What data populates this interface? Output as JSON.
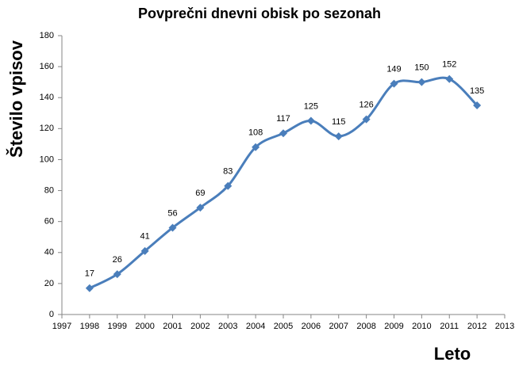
{
  "chart_data": {
    "type": "line",
    "title": "Povprečni dnevni obisk po sezonah",
    "y_label": "Število vpisov",
    "x_label": "Leto",
    "x": [
      1998,
      1999,
      2000,
      2001,
      2002,
      2003,
      2004,
      2005,
      2006,
      2007,
      2008,
      2009,
      2010,
      2011,
      2012
    ],
    "values": [
      17,
      26,
      41,
      56,
      69,
      83,
      108,
      117,
      125,
      115,
      126,
      149,
      150,
      152,
      135
    ],
    "color": "#4a7ebb",
    "smooth": true,
    "data_labels": true,
    "xlim": [
      1997,
      2013
    ],
    "xticks": [
      1997,
      1998,
      1999,
      2000,
      2001,
      2002,
      2003,
      2004,
      2005,
      2006,
      2007,
      2008,
      2009,
      2010,
      2011,
      2012,
      2013
    ],
    "ylim": [
      0,
      180
    ],
    "yticks": [
      0,
      20,
      40,
      60,
      80,
      100,
      120,
      140,
      160,
      180
    ],
    "grid": false
  }
}
